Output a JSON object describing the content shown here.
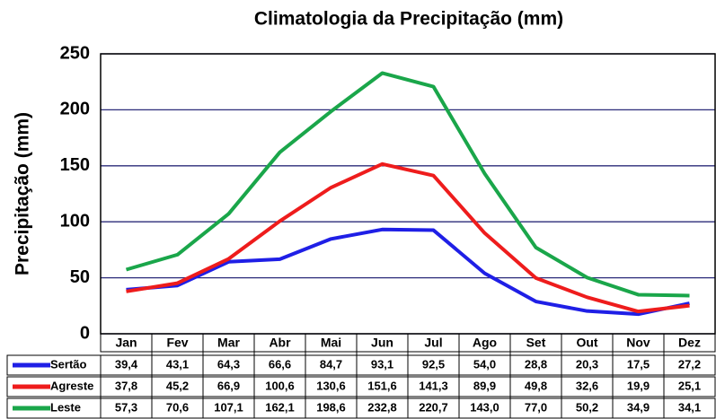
{
  "chart_data": {
    "type": "line",
    "title": "Climatologia da Precipitação (mm)",
    "y_label": "Precipitação (mm)",
    "categories": [
      "Jan",
      "Fev",
      "Mar",
      "Abr",
      "Mai",
      "Jun",
      "Jul",
      "Ago",
      "Set",
      "Out",
      "Nov",
      "Dez"
    ],
    "series": [
      {
        "name": "Sertão",
        "color": "#1f1fe6",
        "values": [
          39.4,
          43.1,
          64.3,
          66.6,
          84.7,
          93.1,
          92.5,
          54.0,
          28.8,
          20.3,
          17.5,
          27.2
        ],
        "value_labels": [
          "39,4",
          "43,1",
          "64,3",
          "66,6",
          "84,7",
          "93,1",
          "92,5",
          "54,0",
          "28,8",
          "20,3",
          "17,5",
          "27,2"
        ]
      },
      {
        "name": "Agreste",
        "color": "#ee1c1c",
        "values": [
          37.8,
          45.2,
          66.9,
          100.6,
          130.6,
          151.6,
          141.3,
          89.9,
          49.8,
          32.6,
          19.9,
          25.1
        ],
        "value_labels": [
          "37,8",
          "45,2",
          "66,9",
          "100,6",
          "130,6",
          "151,6",
          "141,3",
          "89,9",
          "49,8",
          "32,6",
          "19,9",
          "25,1"
        ]
      },
      {
        "name": "Leste",
        "color": "#1aa64a",
        "values": [
          57.3,
          70.6,
          107.1,
          162.1,
          198.6,
          232.8,
          220.7,
          143.0,
          77.0,
          50.2,
          34.9,
          34.1
        ],
        "value_labels": [
          "57,3",
          "70,6",
          "107,1",
          "162,1",
          "198,6",
          "232,8",
          "220,7",
          "143,0",
          "77,0",
          "50,2",
          "34,9",
          "34,1"
        ]
      }
    ],
    "ylim": [
      0,
      250
    ],
    "yticks": [
      0,
      50,
      100,
      150,
      200,
      250
    ],
    "grid": true
  }
}
